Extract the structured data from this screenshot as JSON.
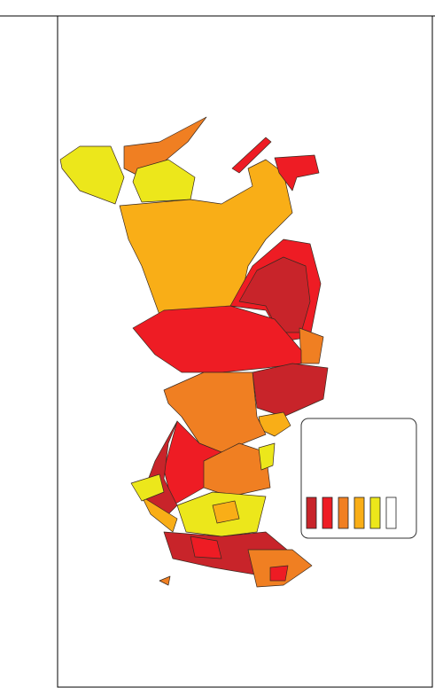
{
  "legend": {
    "colors": [
      "#c8242a",
      "#ee1c24",
      "#f07f22",
      "#f9ae17",
      "#ece71b",
      "#ffffff"
    ]
  }
}
